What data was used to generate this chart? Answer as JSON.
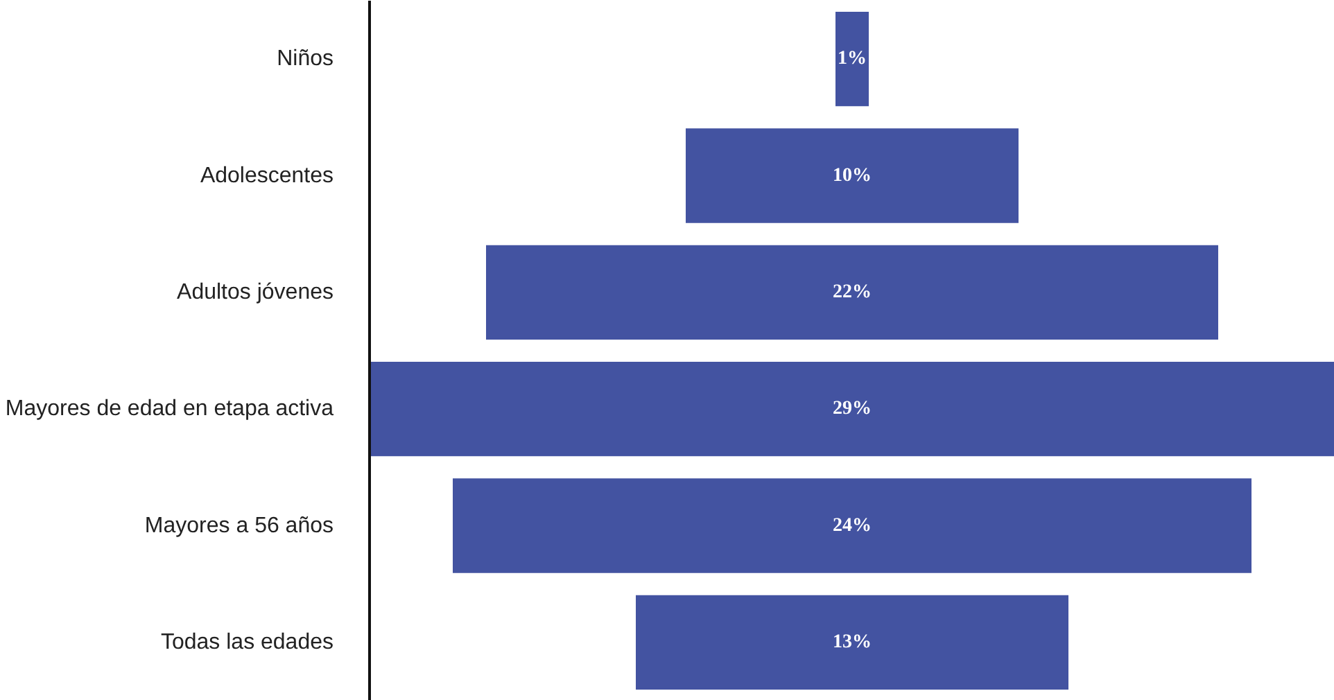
{
  "chart_data": {
    "type": "other",
    "categories": [
      "Niños",
      "Adolescentes",
      "Adultos jóvenes",
      "Mayores de edad en etapa activa",
      "Mayores a 56 años",
      "Todas las edades"
    ],
    "values": [
      1,
      10,
      22,
      29,
      24,
      13
    ],
    "value_labels": [
      "1%",
      "10%",
      "22%",
      "29%",
      "24%",
      "13%"
    ],
    "color": "#4353a1"
  }
}
